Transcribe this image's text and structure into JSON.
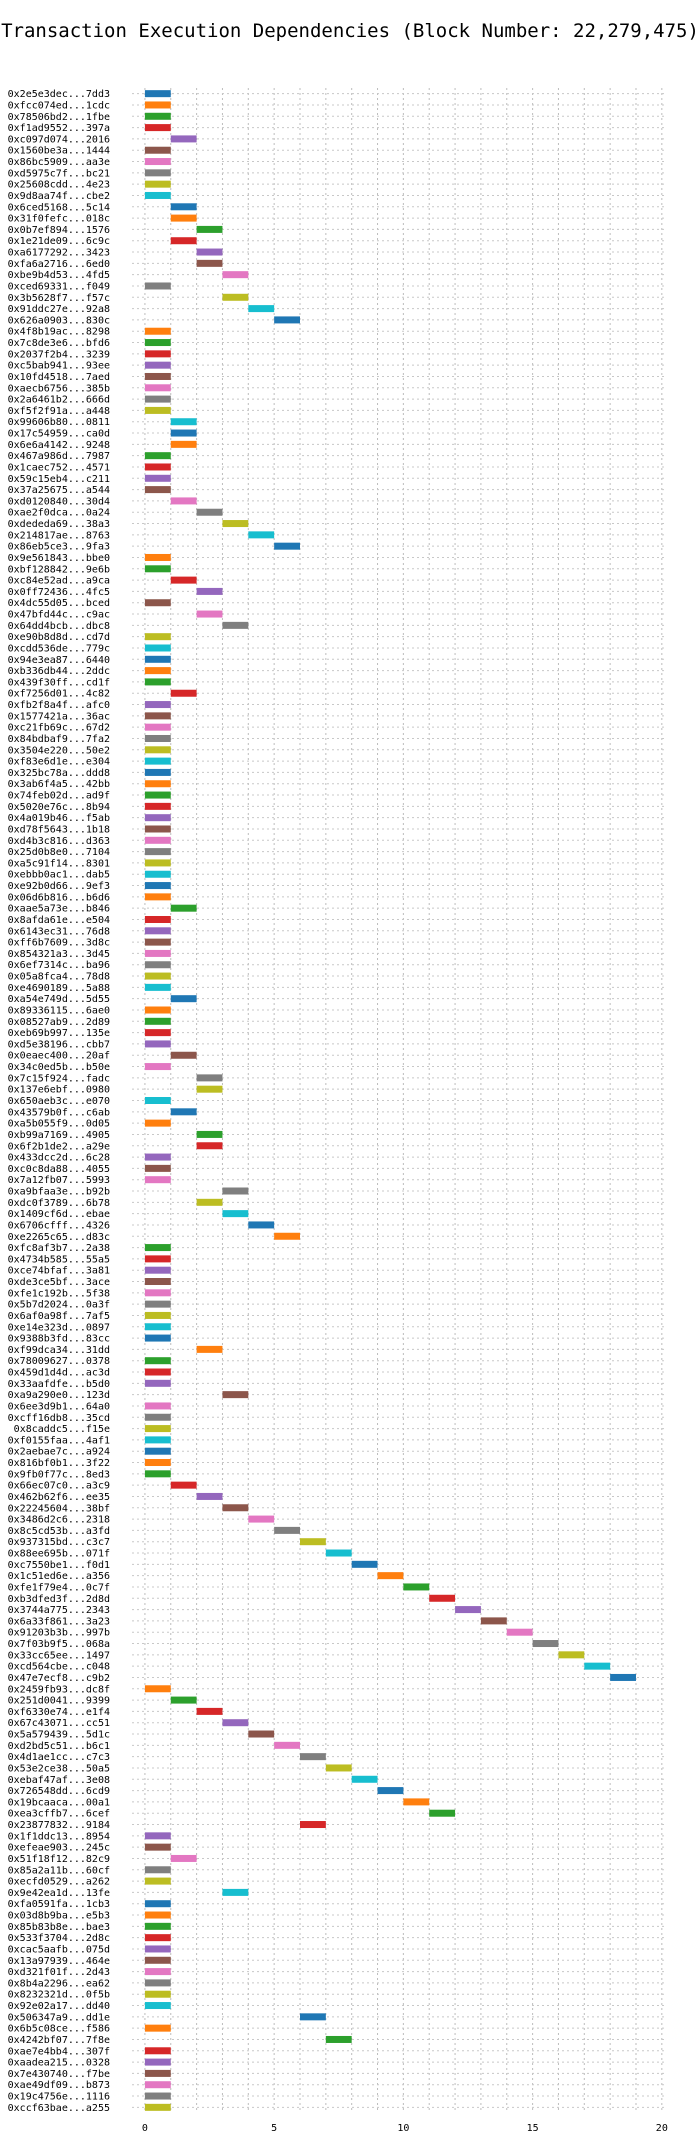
{
  "chart_data": {
    "type": "gantt",
    "title": "Transaction Execution Dependencies (Block Number: 22,279,475)",
    "xlabel": "",
    "ylabel": "",
    "xlim": [
      -0.5,
      20.2
    ],
    "xticks": [
      0,
      5,
      10,
      15,
      20
    ],
    "grid": true,
    "palette": [
      "#1f77b4",
      "#ff7f0e",
      "#2ca02c",
      "#d62728",
      "#9467bd",
      "#8c564b",
      "#e377c2",
      "#7f7f7f",
      "#bcbd22",
      "#17becf"
    ],
    "transactions": [
      {
        "label": "0x2e5e3dec...7dd3",
        "start": 0
      },
      {
        "label": "0xfcc074ed...1cdc",
        "start": 0
      },
      {
        "label": "0x78506bd2...1fbe",
        "start": 0
      },
      {
        "label": "0xf1ad9552...397a",
        "start": 0
      },
      {
        "label": "0xc097d074...2016",
        "start": 1
      },
      {
        "label": "0x1560be3a...1444",
        "start": 0
      },
      {
        "label": "0x86bc5909...aa3e",
        "start": 0
      },
      {
        "label": "0xd5975c7f...bc21",
        "start": 0
      },
      {
        "label": "0x25608cdd...4e23",
        "start": 0
      },
      {
        "label": "0x9d8aa74f...cbe2",
        "start": 0
      },
      {
        "label": "0x6ced5168...5c14",
        "start": 1
      },
      {
        "label": "0x31f0fefc...018c",
        "start": 1
      },
      {
        "label": "0x0b7ef894...1576",
        "start": 2
      },
      {
        "label": "0x1e21de09...6c9c",
        "start": 1
      },
      {
        "label": "0xa6177292...3423",
        "start": 2
      },
      {
        "label": "0xfa6a2716...6ed0",
        "start": 2
      },
      {
        "label": "0xbe9b4d53...4fd5",
        "start": 3
      },
      {
        "label": "0xced69331...f049",
        "start": 0
      },
      {
        "label": "0x3b5628f7...f57c",
        "start": 3
      },
      {
        "label": "0x91ddc27e...92a8",
        "start": 4
      },
      {
        "label": "0x626a0903...830c",
        "start": 5
      },
      {
        "label": "0x4f8b19ac...8298",
        "start": 0
      },
      {
        "label": "0x7c8de3e6...bfd6",
        "start": 0
      },
      {
        "label": "0x2037f2b4...3239",
        "start": 0
      },
      {
        "label": "0xc5bab941...93ee",
        "start": 0
      },
      {
        "label": "0x10fd4518...7aed",
        "start": 0
      },
      {
        "label": "0xaecb6756...385b",
        "start": 0
      },
      {
        "label": "0x2a6461b2...666d",
        "start": 0
      },
      {
        "label": "0xf5f2f91a...a448",
        "start": 0
      },
      {
        "label": "0x99606b80...0811",
        "start": 1
      },
      {
        "label": "0x17c54959...ca0d",
        "start": 1
      },
      {
        "label": "0x6e6a4142...9248",
        "start": 1
      },
      {
        "label": "0x467a986d...7987",
        "start": 0
      },
      {
        "label": "0x1caec752...4571",
        "start": 0
      },
      {
        "label": "0x59c15eb4...c211",
        "start": 0
      },
      {
        "label": "0x37a25675...a544",
        "start": 0
      },
      {
        "label": "0xd0120840...30d4",
        "start": 1
      },
      {
        "label": "0xae2f0dca...0a24",
        "start": 2
      },
      {
        "label": "0xdededa69...38a3",
        "start": 3
      },
      {
        "label": "0x214817ae...8763",
        "start": 4
      },
      {
        "label": "0x86eb5ce3...9fa3",
        "start": 5
      },
      {
        "label": "0x9e561843...bbe0",
        "start": 0
      },
      {
        "label": "0xbf128842...9e6b",
        "start": 0
      },
      {
        "label": "0xc84e52ad...a9ca",
        "start": 1
      },
      {
        "label": "0x0ff72436...4fc5",
        "start": 2
      },
      {
        "label": "0x4dc55d05...bced",
        "start": 0
      },
      {
        "label": "0x47bfd44c...c9ac",
        "start": 2
      },
      {
        "label": "0x64dd4bcb...dbc8",
        "start": 3
      },
      {
        "label": "0xe90b8d8d...cd7d",
        "start": 0
      },
      {
        "label": "0xcdd536de...779c",
        "start": 0
      },
      {
        "label": "0x94e3ea87...6440",
        "start": 0
      },
      {
        "label": "0xb336db44...2ddc",
        "start": 0
      },
      {
        "label": "0x439f30ff...cd1f",
        "start": 0
      },
      {
        "label": "0xf7256d01...4c82",
        "start": 1
      },
      {
        "label": "0xfb2f8a4f...afc0",
        "start": 0
      },
      {
        "label": "0x1577421a...36ac",
        "start": 0
      },
      {
        "label": "0xc21fb69c...67d2",
        "start": 0
      },
      {
        "label": "0x84bdbaf9...7fa2",
        "start": 0
      },
      {
        "label": "0x3504e220...50e2",
        "start": 0
      },
      {
        "label": "0xf83e6d1e...e304",
        "start": 0
      },
      {
        "label": "0x325bc78a...ddd8",
        "start": 0
      },
      {
        "label": "0x3ab6f4a5...42bb",
        "start": 0
      },
      {
        "label": "0x74feb02d...ad9f",
        "start": 0
      },
      {
        "label": "0x5020e76c...8b94",
        "start": 0
      },
      {
        "label": "0x4a019b46...f5ab",
        "start": 0
      },
      {
        "label": "0xd78f5643...1b18",
        "start": 0
      },
      {
        "label": "0xd4b3c816...d363",
        "start": 0
      },
      {
        "label": "0x25d0b8e0...7104",
        "start": 0
      },
      {
        "label": "0xa5c91f14...8301",
        "start": 0
      },
      {
        "label": "0xebbb0ac1...dab5",
        "start": 0
      },
      {
        "label": "0xe92b0d66...9ef3",
        "start": 0
      },
      {
        "label": "0x06d6b816...b6d6",
        "start": 0
      },
      {
        "label": "0xaae5a73e...b846",
        "start": 1
      },
      {
        "label": "0x8afda61e...e504",
        "start": 0
      },
      {
        "label": "0x6143ec31...76d8",
        "start": 0
      },
      {
        "label": "0xff6b7609...3d8c",
        "start": 0
      },
      {
        "label": "0x854321a3...3d45",
        "start": 0
      },
      {
        "label": "0x6ef7314c...ba96",
        "start": 0
      },
      {
        "label": "0x05a8fca4...78d8",
        "start": 0
      },
      {
        "label": "0xe4690189...5a88",
        "start": 0
      },
      {
        "label": "0xa54e749d...5d55",
        "start": 1
      },
      {
        "label": "0x89336115...6ae0",
        "start": 0
      },
      {
        "label": "0x08527ab9...2d89",
        "start": 0
      },
      {
        "label": "0xeb69b997...135e",
        "start": 0
      },
      {
        "label": "0xd5e38196...cbb7",
        "start": 0
      },
      {
        "label": "0x0eaec400...20af",
        "start": 1
      },
      {
        "label": "0x34c0ed5b...b50e",
        "start": 0
      },
      {
        "label": "0x7c15f924...fadc",
        "start": 2
      },
      {
        "label": "0x137e6ebf...0980",
        "start": 2
      },
      {
        "label": "0x650aeb3c...e070",
        "start": 0
      },
      {
        "label": "0x43579b0f...c6ab",
        "start": 1
      },
      {
        "label": "0xa5b055f9...0d05",
        "start": 0
      },
      {
        "label": "0xb99a7169...4905",
        "start": 2
      },
      {
        "label": "0x6f2b1de2...a29e",
        "start": 2
      },
      {
        "label": "0x433dcc2d...6c28",
        "start": 0
      },
      {
        "label": "0xc0c8da88...4055",
        "start": 0
      },
      {
        "label": "0x7a12fb07...5993",
        "start": 0
      },
      {
        "label": "0xa9bfaa3e...b92b",
        "start": 3
      },
      {
        "label": "0xdc0f3789...6b78",
        "start": 2
      },
      {
        "label": "0x1409cf6d...ebae",
        "start": 3
      },
      {
        "label": "0x6706cfff...4326",
        "start": 4
      },
      {
        "label": "0xe2265c65...d83c",
        "start": 5
      },
      {
        "label": "0xfc8af3b7...2a38",
        "start": 0
      },
      {
        "label": "0x4734b585...55a5",
        "start": 0
      },
      {
        "label": "0xce74bfaf...3a81",
        "start": 0
      },
      {
        "label": "0xde3ce5bf...3ace",
        "start": 0
      },
      {
        "label": "0xfe1c192b...5f38",
        "start": 0
      },
      {
        "label": "0x5b7d2024...0a3f",
        "start": 0
      },
      {
        "label": "0x6af0a98f...7af5",
        "start": 0
      },
      {
        "label": "0xe14e323d...0897",
        "start": 0
      },
      {
        "label": "0x9388b3fd...83cc",
        "start": 0
      },
      {
        "label": "0xf99dca34...31dd",
        "start": 2
      },
      {
        "label": "0x78009627...0378",
        "start": 0
      },
      {
        "label": "0x459d1d4d...ac3d",
        "start": 0
      },
      {
        "label": "0x33aafdfe...b5d0",
        "start": 0
      },
      {
        "label": "0xa9a290e0...123d",
        "start": 3
      },
      {
        "label": "0x6ee3d9b1...64a0",
        "start": 0
      },
      {
        "label": "0xcff16db8...35cd",
        "start": 0
      },
      {
        "label": "0x8caddc5...f15e",
        "start": 0
      },
      {
        "label": "0xf0155faa...4af1",
        "start": 0
      },
      {
        "label": "0x2aebae7c...a924",
        "start": 0
      },
      {
        "label": "0x816bf0b1...3f22",
        "start": 0
      },
      {
        "label": "0x9fb0f77c...8ed3",
        "start": 0
      },
      {
        "label": "0x66ec07c0...a3c9",
        "start": 1
      },
      {
        "label": "0x462b62f6...ee35",
        "start": 2
      },
      {
        "label": "0x22245604...38bf",
        "start": 3
      },
      {
        "label": "0x3486d2c6...2318",
        "start": 4
      },
      {
        "label": "0x8c5cd53b...a3fd",
        "start": 5
      },
      {
        "label": "0x937315bd...c3c7",
        "start": 6
      },
      {
        "label": "0x88ee695b...071f",
        "start": 7
      },
      {
        "label": "0xc7550be1...f0d1",
        "start": 8
      },
      {
        "label": "0x1c51ed6e...a356",
        "start": 9
      },
      {
        "label": "0xfe1f79e4...0c7f",
        "start": 10
      },
      {
        "label": "0xb3dfed3f...2d8d",
        "start": 11
      },
      {
        "label": "0x3744a775...2343",
        "start": 12
      },
      {
        "label": "0x6a33f861...3a23",
        "start": 13
      },
      {
        "label": "0x91203b3b...997b",
        "start": 14
      },
      {
        "label": "0x7f03b9f5...068a",
        "start": 15
      },
      {
        "label": "0x33cc65ee...1497",
        "start": 16
      },
      {
        "label": "0xcd564cbe...c048",
        "start": 17
      },
      {
        "label": "0x47e7ecf8...c9b2",
        "start": 18
      },
      {
        "label": "0x2459fb93...dc8f",
        "start": 0
      },
      {
        "label": "0x251d0041...9399",
        "start": 1
      },
      {
        "label": "0xf6330e74...e1f4",
        "start": 2
      },
      {
        "label": "0x67c43071...cc51",
        "start": 3
      },
      {
        "label": "0x5a579439...5d1c",
        "start": 4
      },
      {
        "label": "0xd2bd5c51...b6c1",
        "start": 5
      },
      {
        "label": "0x4d1ae1cc...c7c3",
        "start": 6
      },
      {
        "label": "0x53e2ce38...50a5",
        "start": 7
      },
      {
        "label": "0xebaf47af...3e08",
        "start": 8
      },
      {
        "label": "0x726548dd...6cd9",
        "start": 9
      },
      {
        "label": "0x19bcaaca...00a1",
        "start": 10
      },
      {
        "label": "0xea3cffb7...6cef",
        "start": 11
      },
      {
        "label": "0x23877832...9184",
        "start": 6
      },
      {
        "label": "0x1f1ddc13...8954",
        "start": 0
      },
      {
        "label": "0xefeae903...245c",
        "start": 0
      },
      {
        "label": "0x51f18f12...82c9",
        "start": 1
      },
      {
        "label": "0x85a2a11b...60cf",
        "start": 0
      },
      {
        "label": "0xecfd0529...a262",
        "start": 0
      },
      {
        "label": "0x9e42ea1d...13fe",
        "start": 3
      },
      {
        "label": "0xfa0591fa...1cb3",
        "start": 0
      },
      {
        "label": "0x03d8b9ba...e5b3",
        "start": 0
      },
      {
        "label": "0x85b83b8e...bae3",
        "start": 0
      },
      {
        "label": "0x533f3704...2d8c",
        "start": 0
      },
      {
        "label": "0xcac5aafb...075d",
        "start": 0
      },
      {
        "label": "0x13a97939...464e",
        "start": 0
      },
      {
        "label": "0xd321f01f...2d43",
        "start": 0
      },
      {
        "label": "0x8b4a2296...ea62",
        "start": 0
      },
      {
        "label": "0x8232321d...0f5b",
        "start": 0
      },
      {
        "label": "0x92e02a17...dd40",
        "start": 0
      },
      {
        "label": "0x506347a9...dd1e",
        "start": 6
      },
      {
        "label": "0x6b5c08ce...f586",
        "start": 0
      },
      {
        "label": "0x4242bf07...7f8e",
        "start": 7
      },
      {
        "label": "0xae7e4bb4...307f",
        "start": 0
      },
      {
        "label": "0xaadea215...0328",
        "start": 0
      },
      {
        "label": "0x7e430740...f7be",
        "start": 0
      },
      {
        "label": "0xae49df09...b873",
        "start": 0
      },
      {
        "label": "0x19c4756e...1116",
        "start": 0
      },
      {
        "label": "0xccf63bae...a255",
        "start": 0
      }
    ]
  }
}
